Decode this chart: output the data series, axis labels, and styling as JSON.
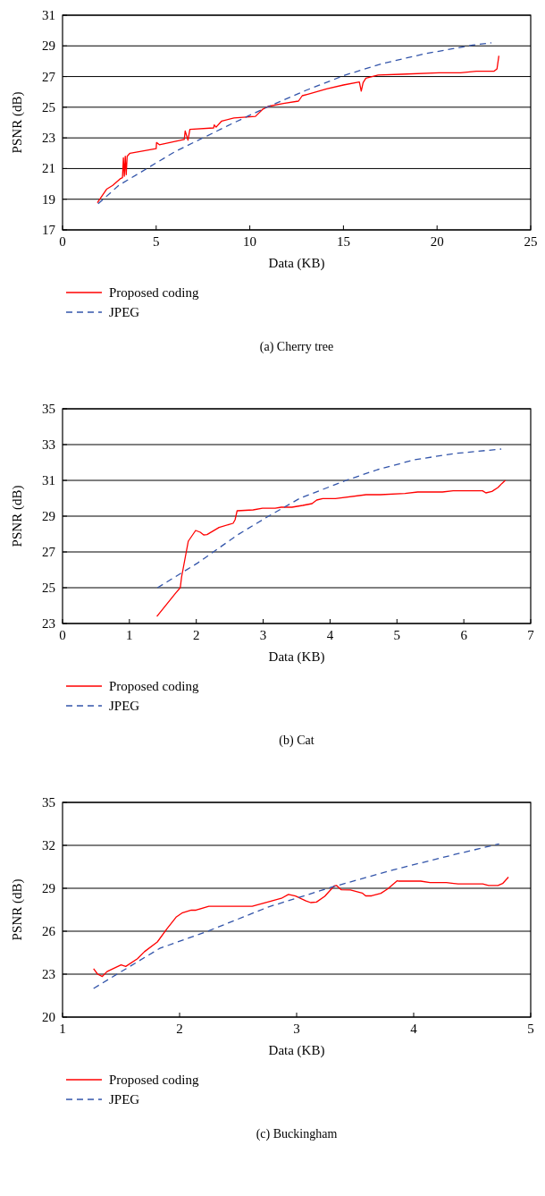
{
  "chart_data": [
    {
      "type": "line",
      "title": "(a)  Cherry tree",
      "xlabel": "Data (KB)",
      "ylabel": "PSNR (dB)",
      "xlim": [
        0,
        25
      ],
      "xticks": [
        0,
        5,
        10,
        15,
        20,
        25
      ],
      "ylim": [
        17,
        31
      ],
      "yticks": [
        17,
        19,
        21,
        23,
        25,
        27,
        29,
        31
      ],
      "grid": "y",
      "legend": "bottom",
      "series": [
        {
          "name": "Proposed coding",
          "color": "#ff0000",
          "line_style": "solid",
          "x": [
            1.86,
            2.35,
            2.68,
            3.1,
            3.2,
            3.25,
            3.3,
            3.35,
            3.4,
            3.45,
            3.6,
            5.0,
            5.02,
            5.17,
            6.5,
            6.55,
            6.7,
            6.8,
            8.07,
            8.1,
            8.2,
            8.5,
            9.15,
            10.3,
            10.67,
            10.97,
            11.8,
            12.6,
            12.8,
            13.1,
            14.1,
            15.0,
            15.85,
            15.95,
            16.05,
            16.2,
            16.85,
            18.1,
            20.1,
            21.25,
            22.1,
            23.05,
            23.2,
            23.3
          ],
          "values": [
            18.77,
            19.65,
            19.9,
            20.35,
            20.4,
            21.7,
            20.5,
            21.8,
            20.6,
            21.8,
            22.0,
            22.3,
            22.7,
            22.55,
            22.9,
            23.45,
            22.85,
            23.55,
            23.65,
            23.85,
            23.7,
            24.1,
            24.3,
            24.4,
            24.85,
            25.05,
            25.25,
            25.4,
            25.75,
            25.85,
            26.2,
            26.45,
            26.65,
            26.05,
            26.6,
            26.9,
            27.1,
            27.15,
            27.25,
            27.25,
            27.35,
            27.35,
            27.5,
            28.35
          ]
        },
        {
          "name": "JPEG",
          "color": "#3355aa",
          "line_style": "dashed",
          "x": [
            1.9,
            3,
            4.5,
            6,
            7.5,
            9,
            11,
            13,
            15.1,
            17.1,
            19.4,
            21.9,
            22.9
          ],
          "values": [
            18.7,
            19.9,
            21.0,
            22.1,
            23.0,
            23.9,
            25.05,
            26.1,
            27.1,
            27.85,
            28.5,
            29.05,
            29.2
          ]
        }
      ]
    },
    {
      "type": "line",
      "title": "(b)  Cat",
      "xlabel": "Data (KB)",
      "ylabel": "PSNR (dB)",
      "xlim": [
        0,
        7
      ],
      "xticks": [
        0,
        1,
        2,
        3,
        4,
        5,
        6,
        7
      ],
      "ylim": [
        23,
        35
      ],
      "yticks": [
        23,
        25,
        27,
        29,
        31,
        33,
        35
      ],
      "grid": "y",
      "legend": "bottom",
      "series": [
        {
          "name": "Proposed coding",
          "color": "#ff0000",
          "line_style": "solid",
          "x": [
            1.41,
            1.69,
            1.76,
            1.78,
            1.88,
            1.99,
            2.06,
            2.11,
            2.16,
            2.34,
            2.55,
            2.58,
            2.61,
            2.85,
            2.99,
            3.18,
            3.27,
            3.43,
            3.59,
            3.73,
            3.8,
            3.89,
            4.08,
            4.54,
            4.75,
            5.12,
            5.31,
            5.68,
            5.84,
            6.28,
            6.33,
            6.42,
            6.51,
            6.57,
            6.62
          ],
          "values": [
            23.39,
            24.69,
            25.0,
            25.6,
            27.6,
            28.2,
            28.1,
            27.95,
            27.97,
            28.37,
            28.6,
            28.8,
            29.3,
            29.35,
            29.44,
            29.44,
            29.5,
            29.5,
            29.6,
            29.7,
            29.9,
            29.98,
            29.98,
            30.2,
            30.2,
            30.27,
            30.35,
            30.35,
            30.42,
            30.42,
            30.3,
            30.38,
            30.6,
            30.83,
            31.0
          ]
        },
        {
          "name": "JPEG",
          "color": "#3355aa",
          "line_style": "dashed",
          "x": [
            1.42,
            2.02,
            2.62,
            3.08,
            3.55,
            4.24,
            4.71,
            5.26,
            5.86,
            6.56
          ],
          "values": [
            25.0,
            26.38,
            27.96,
            29.0,
            30.0,
            31.0,
            31.6,
            32.15,
            32.5,
            32.75
          ]
        }
      ]
    },
    {
      "type": "line",
      "title": "(c)  Buckingham",
      "xlabel": "Data (KB)",
      "ylabel": "PSNR (dB)",
      "xlim": [
        1,
        5
      ],
      "xticks": [
        1,
        2,
        3,
        4,
        5
      ],
      "ylim": [
        20,
        35
      ],
      "yticks": [
        20,
        23,
        26,
        29,
        32,
        35
      ],
      "grid": "y",
      "legend": "bottom",
      "series": [
        {
          "name": "Proposed coding",
          "color": "#ff0000",
          "line_style": "solid",
          "x": [
            1.265,
            1.3,
            1.34,
            1.38,
            1.5,
            1.54,
            1.64,
            1.7,
            1.81,
            1.89,
            1.97,
            2.02,
            2.1,
            2.14,
            2.25,
            2.62,
            2.76,
            2.87,
            2.93,
            2.99,
            3.08,
            3.12,
            3.17,
            3.24,
            3.32,
            3.34,
            3.38,
            3.46,
            3.56,
            3.59,
            3.64,
            3.72,
            3.78,
            3.86,
            3.87,
            4.06,
            4.14,
            4.28,
            4.38,
            4.59,
            4.64,
            4.72,
            4.76,
            4.81
          ],
          "values": [
            23.38,
            23.0,
            22.84,
            23.18,
            23.65,
            23.54,
            24.08,
            24.57,
            25.25,
            26.15,
            26.98,
            27.27,
            27.47,
            27.47,
            27.74,
            27.74,
            28.05,
            28.3,
            28.57,
            28.46,
            28.12,
            28.0,
            28.04,
            28.44,
            29.16,
            29.2,
            28.9,
            28.88,
            28.67,
            28.47,
            28.47,
            28.65,
            28.97,
            29.53,
            29.5,
            29.5,
            29.4,
            29.4,
            29.3,
            29.3,
            29.2,
            29.2,
            29.33,
            29.78
          ]
        },
        {
          "name": "JPEG",
          "color": "#3355aa",
          "line_style": "dashed",
          "x": [
            1.265,
            1.49,
            1.83,
            2.24,
            2.76,
            3.29,
            3.82,
            4.35,
            4.73
          ],
          "values": [
            22.0,
            23.12,
            24.8,
            26.0,
            27.7,
            29.05,
            30.28,
            31.36,
            32.1
          ]
        }
      ]
    }
  ]
}
